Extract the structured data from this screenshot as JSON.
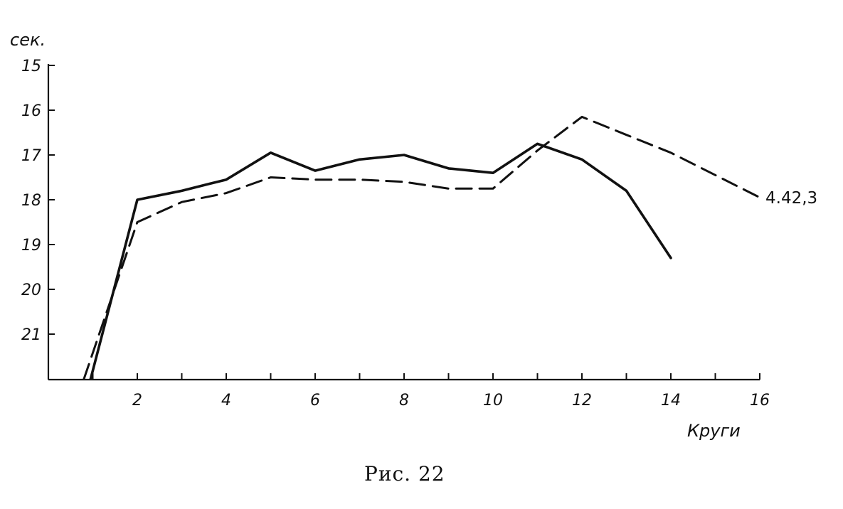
{
  "chart_data": {
    "type": "line",
    "ylabel": "сек.",
    "xlabel": "Круги",
    "caption": "Рис. 22",
    "xlim": [
      0,
      16
    ],
    "ylim": [
      15,
      22
    ],
    "y_inverted": true,
    "y_ticks": [
      "15",
      "16",
      "17",
      "18",
      "19",
      "20",
      "21"
    ],
    "x_ticks": [
      "2",
      "4",
      "6",
      "8",
      "10",
      "12",
      "14",
      "16"
    ],
    "grid": false,
    "series": [
      {
        "style": "solid",
        "color": "#111111",
        "x": [
          0.95,
          2,
          3,
          3.6,
          4,
          5,
          6,
          7,
          8,
          9,
          10,
          11,
          12,
          13,
          14
        ],
        "y": [
          22.0,
          18.0,
          17.8,
          17.65,
          17.55,
          16.95,
          17.35,
          17.1,
          17.0,
          17.3,
          17.4,
          16.75,
          17.1,
          17.8,
          19.3
        ]
      },
      {
        "style": "dashed",
        "color": "#111111",
        "x": [
          0.8,
          2,
          3,
          4,
          5,
          6,
          7,
          8,
          9,
          10,
          11,
          12,
          13,
          14,
          15,
          16
        ],
        "y": [
          22.0,
          18.5,
          18.05,
          17.85,
          17.5,
          17.55,
          17.55,
          17.6,
          17.75,
          17.75,
          16.9,
          16.15,
          16.55,
          16.95,
          17.45,
          17.95
        ]
      }
    ],
    "annotations": [
      {
        "text": "4.42,3",
        "x": 16,
        "y": 17.95
      }
    ]
  }
}
